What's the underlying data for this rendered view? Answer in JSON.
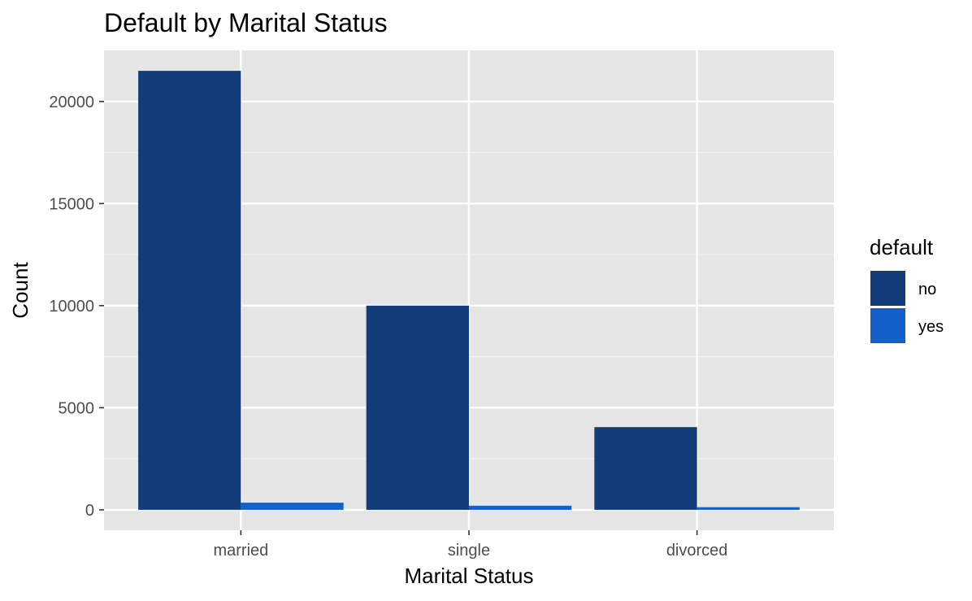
{
  "chart_data": {
    "type": "bar",
    "title": "Default by Marital Status",
    "xlabel": "Marital Status",
    "ylabel": "Count",
    "categories": [
      "married",
      "single",
      "divorced"
    ],
    "series": [
      {
        "name": "no",
        "values": [
          21500,
          10000,
          4050
        ],
        "color": "#123c7a"
      },
      {
        "name": "yes",
        "values": [
          350,
          200,
          130
        ],
        "color": "#1560c8"
      }
    ],
    "ylim": [
      -1000,
      22500
    ],
    "yticks": [
      0,
      5000,
      10000,
      15000,
      20000
    ],
    "ytick_labels": [
      "0",
      "5000",
      "10000",
      "15000",
      "20000"
    ],
    "legend": {
      "title": "default",
      "position": "right"
    },
    "panel_background": "#e5e5e5",
    "grid": true
  }
}
